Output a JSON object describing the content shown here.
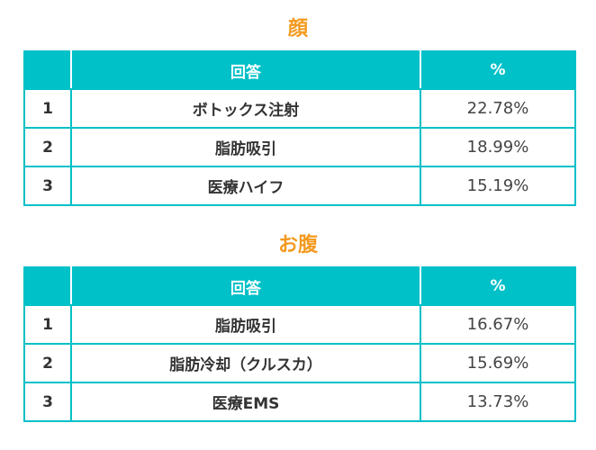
{
  "accent_color": "#00c0c8",
  "title_color": "#f39a1e",
  "sections": [
    {
      "title": "顔",
      "header": {
        "rank": "",
        "answer": "回答",
        "percent": "%"
      },
      "rows": [
        {
          "rank": "1",
          "answer": "ボトックス注射",
          "percent": "22.78%"
        },
        {
          "rank": "2",
          "answer": "脂肪吸引",
          "percent": "18.99%"
        },
        {
          "rank": "3",
          "answer": "医療ハイフ",
          "percent": "15.19%"
        }
      ]
    },
    {
      "title": "お腹",
      "header": {
        "rank": "",
        "answer": "回答",
        "percent": "%"
      },
      "rows": [
        {
          "rank": "1",
          "answer": "脂肪吸引",
          "percent": "16.67%"
        },
        {
          "rank": "2",
          "answer": "脂肪冷却（クルスカ）",
          "percent": "15.69%"
        },
        {
          "rank": "3",
          "answer": "医療EMS",
          "percent": "13.73%"
        }
      ]
    }
  ]
}
